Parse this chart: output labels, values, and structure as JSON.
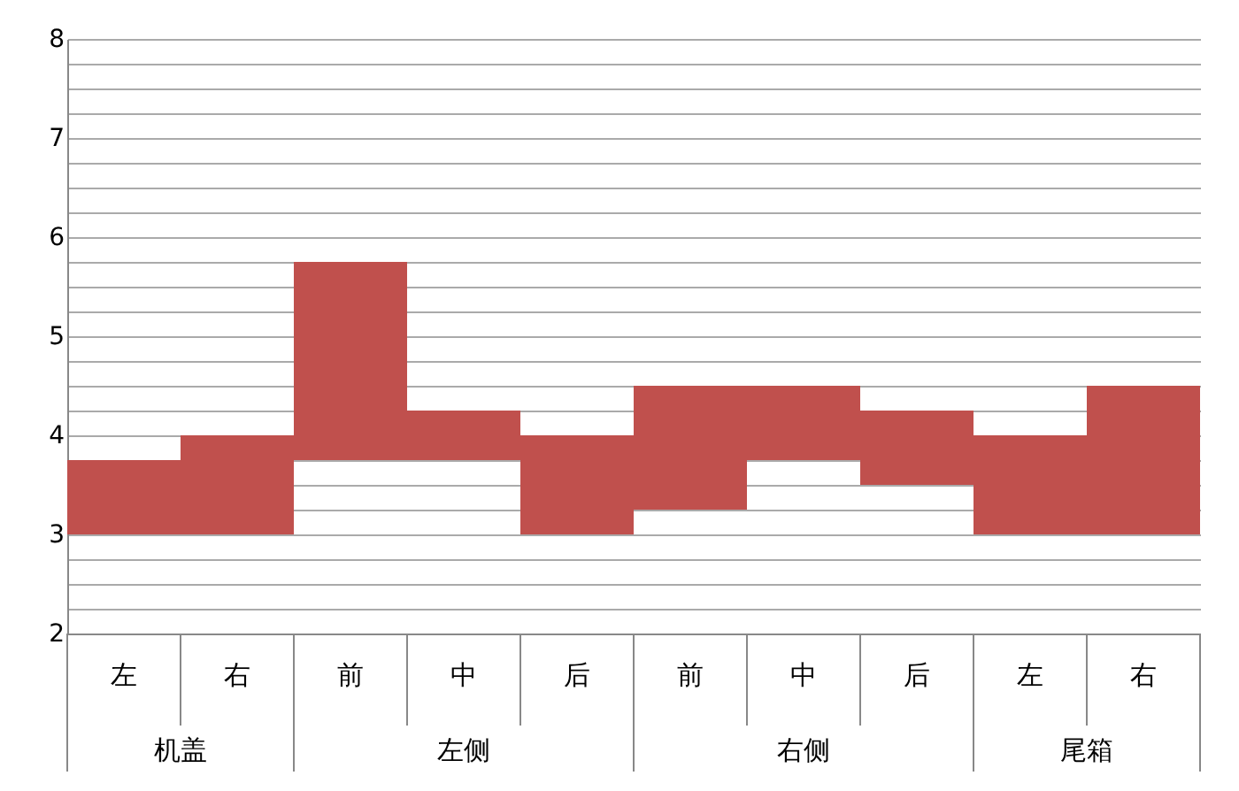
{
  "chart_data": {
    "type": "bar",
    "categories": [
      "左",
      "右",
      "前",
      "中",
      "后",
      "前",
      "中",
      "后",
      "左",
      "右"
    ],
    "base": [
      3,
      3,
      3.75,
      3.75,
      3,
      3.25,
      3.75,
      3.5,
      3,
      3
    ],
    "values": [
      0.75,
      1,
      2,
      0.5,
      1,
      1.25,
      0.75,
      0.75,
      1,
      1.5
    ],
    "color": "#c0504d",
    "annotations": [
      "机盖",
      "左侧",
      "右侧",
      "尾箱"
    ],
    "ylim": [
      2,
      8
    ],
    "yticks": [
      2,
      {
        "value": 2.25,
        "label": null
      },
      {
        "value": 2.5,
        "label": null
      },
      {
        "value": 2.75,
        "label": null
      },
      3,
      {
        "value": 3.25,
        "label": null
      },
      {
        "value": 3.5,
        "label": null
      },
      {
        "value": 3.75,
        "label": null
      },
      4,
      {
        "value": 4.25,
        "label": null
      },
      {
        "value": 4.5,
        "label": null
      },
      {
        "value": 4.75,
        "label": null
      },
      5,
      {
        "value": 5.25,
        "label": null
      },
      {
        "value": 5.5,
        "label": null
      },
      {
        "value": 5.75,
        "label": null
      },
      6,
      {
        "value": 6.25,
        "label": null
      },
      {
        "value": 6.5,
        "label": null
      },
      {
        "value": 6.75,
        "label": null
      },
      7,
      {
        "value": 7.25,
        "label": null
      },
      {
        "value": 7.5,
        "label": null
      },
      {
        "value": 7.75,
        "label": null
      },
      8
    ],
    "grid": true
  }
}
